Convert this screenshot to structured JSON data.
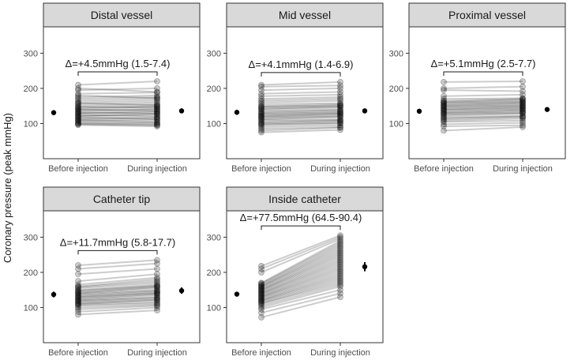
{
  "y_axis_label": "Coronary pressure (peak mmHg)",
  "chart_data": [
    {
      "type": "scatter",
      "title": "Distal vessel",
      "categories": [
        "Before injection",
        "During injection"
      ],
      "ylim": [
        0,
        375
      ],
      "yticks": [
        100,
        200,
        300
      ],
      "annotation": "Δ=+4.5mmHg (1.5-7.4)",
      "mean": [
        131,
        136
      ],
      "ci": [
        [
          124,
          138
        ],
        [
          129,
          143
        ]
      ],
      "pairs": [
        [
          96,
          92
        ],
        [
          98,
          95
        ],
        [
          100,
          97
        ],
        [
          102,
          100
        ],
        [
          105,
          103
        ],
        [
          108,
          110
        ],
        [
          110,
          105
        ],
        [
          112,
          115
        ],
        [
          115,
          118
        ],
        [
          118,
          112
        ],
        [
          120,
          125
        ],
        [
          122,
          128
        ],
        [
          125,
          120
        ],
        [
          128,
          132
        ],
        [
          130,
          135
        ],
        [
          132,
          128
        ],
        [
          135,
          140
        ],
        [
          138,
          142
        ],
        [
          140,
          136
        ],
        [
          142,
          148
        ],
        [
          145,
          150
        ],
        [
          148,
          145
        ],
        [
          150,
          155
        ],
        [
          155,
          160
        ],
        [
          158,
          152
        ],
        [
          160,
          165
        ],
        [
          165,
          170
        ],
        [
          170,
          175
        ],
        [
          175,
          180
        ],
        [
          180,
          172
        ],
        [
          185,
          188
        ],
        [
          195,
          200
        ],
        [
          200,
          190
        ],
        [
          210,
          220
        ]
      ]
    },
    {
      "type": "scatter",
      "title": "Mid vessel",
      "categories": [
        "Before injection",
        "During injection"
      ],
      "ylim": [
        0,
        375
      ],
      "yticks": [
        100,
        200,
        300
      ],
      "annotation": "Δ=+4.1mmHg (1.4-6.9)",
      "mean": [
        132,
        136
      ],
      "ci": [
        [
          125,
          139
        ],
        [
          129,
          143
        ]
      ],
      "pairs": [
        [
          75,
          82
        ],
        [
          80,
          88
        ],
        [
          85,
          90
        ],
        [
          90,
          95
        ],
        [
          95,
          100
        ],
        [
          98,
          102
        ],
        [
          100,
          105
        ],
        [
          103,
          108
        ],
        [
          106,
          110
        ],
        [
          110,
          112
        ],
        [
          112,
          118
        ],
        [
          115,
          120
        ],
        [
          118,
          122
        ],
        [
          120,
          126
        ],
        [
          122,
          128
        ],
        [
          125,
          130
        ],
        [
          128,
          132
        ],
        [
          130,
          135
        ],
        [
          133,
          138
        ],
        [
          136,
          140
        ],
        [
          140,
          145
        ],
        [
          142,
          148
        ],
        [
          145,
          150
        ],
        [
          148,
          152
        ],
        [
          150,
          155
        ],
        [
          155,
          158
        ],
        [
          160,
          165
        ],
        [
          165,
          170
        ],
        [
          170,
          175
        ],
        [
          178,
          182
        ],
        [
          185,
          190
        ],
        [
          195,
          200
        ],
        [
          205,
          208
        ],
        [
          210,
          218
        ]
      ]
    },
    {
      "type": "scatter",
      "title": "Proximal vessel",
      "categories": [
        "Before injection",
        "During injection"
      ],
      "ylim": [
        0,
        375
      ],
      "yticks": [
        100,
        200,
        300
      ],
      "annotation": "Δ=+5.1mmHg (2.5-7.7)",
      "mean": [
        135,
        140
      ],
      "ci": [
        [
          129,
          141
        ],
        [
          134,
          146
        ]
      ],
      "pairs": [
        [
          80,
          90
        ],
        [
          92,
          95
        ],
        [
          98,
          102
        ],
        [
          105,
          108
        ],
        [
          108,
          114
        ],
        [
          112,
          118
        ],
        [
          115,
          120
        ],
        [
          118,
          122
        ],
        [
          122,
          128
        ],
        [
          125,
          130
        ],
        [
          128,
          132
        ],
        [
          130,
          135
        ],
        [
          132,
          138
        ],
        [
          135,
          140
        ],
        [
          138,
          143
        ],
        [
          140,
          145
        ],
        [
          142,
          148
        ],
        [
          145,
          150
        ],
        [
          148,
          152
        ],
        [
          150,
          155
        ],
        [
          152,
          158
        ],
        [
          155,
          160
        ],
        [
          158,
          162
        ],
        [
          160,
          165
        ],
        [
          162,
          168
        ],
        [
          165,
          170
        ],
        [
          170,
          172
        ],
        [
          178,
          182
        ],
        [
          195,
          192
        ],
        [
          200,
          205
        ],
        [
          218,
          220
        ]
      ]
    },
    {
      "type": "scatter",
      "title": "Catheter tip",
      "categories": [
        "Before injection",
        "During injection"
      ],
      "ylim": [
        0,
        375
      ],
      "yticks": [
        100,
        200,
        300
      ],
      "annotation": "Δ=+11.7mmHg (5.8-17.7)",
      "mean": [
        137,
        148
      ],
      "ci": [
        [
          129,
          145
        ],
        [
          139,
          157
        ]
      ],
      "pairs": [
        [
          80,
          92
        ],
        [
          88,
          100
        ],
        [
          95,
          105
        ],
        [
          100,
          108
        ],
        [
          105,
          112
        ],
        [
          108,
          115
        ],
        [
          110,
          120
        ],
        [
          112,
          122
        ],
        [
          115,
          125
        ],
        [
          118,
          128
        ],
        [
          120,
          130
        ],
        [
          122,
          135
        ],
        [
          125,
          138
        ],
        [
          128,
          140
        ],
        [
          130,
          142
        ],
        [
          132,
          145
        ],
        [
          135,
          148
        ],
        [
          138,
          150
        ],
        [
          140,
          155
        ],
        [
          142,
          158
        ],
        [
          145,
          160
        ],
        [
          148,
          162
        ],
        [
          150,
          165
        ],
        [
          155,
          170
        ],
        [
          158,
          175
        ],
        [
          160,
          180
        ],
        [
          165,
          185
        ],
        [
          175,
          195
        ],
        [
          195,
          210
        ],
        [
          210,
          225
        ],
        [
          220,
          235
        ]
      ]
    },
    {
      "type": "scatter",
      "title": "Inside catheter",
      "categories": [
        "Before injection",
        "During injection"
      ],
      "ylim": [
        0,
        375
      ],
      "yticks": [
        100,
        200,
        300
      ],
      "annotation": "Δ=+77.5mmHg (64.5-90.4)",
      "mean": [
        138,
        216
      ],
      "ci": [
        [
          131,
          145
        ],
        [
          203,
          229
        ]
      ],
      "pairs": [
        [
          72,
          130
        ],
        [
          85,
          140
        ],
        [
          95,
          150
        ],
        [
          100,
          160
        ],
        [
          105,
          165
        ],
        [
          110,
          170
        ],
        [
          112,
          175
        ],
        [
          115,
          180
        ],
        [
          118,
          185
        ],
        [
          120,
          190
        ],
        [
          122,
          195
        ],
        [
          125,
          200
        ],
        [
          128,
          205
        ],
        [
          130,
          210
        ],
        [
          132,
          215
        ],
        [
          135,
          220
        ],
        [
          138,
          225
        ],
        [
          140,
          230
        ],
        [
          142,
          235
        ],
        [
          145,
          240
        ],
        [
          148,
          245
        ],
        [
          150,
          250
        ],
        [
          152,
          255
        ],
        [
          155,
          260
        ],
        [
          158,
          265
        ],
        [
          160,
          270
        ],
        [
          162,
          275
        ],
        [
          165,
          280
        ],
        [
          168,
          285
        ],
        [
          170,
          290
        ],
        [
          200,
          295
        ],
        [
          210,
          300
        ],
        [
          218,
          305
        ]
      ]
    }
  ]
}
